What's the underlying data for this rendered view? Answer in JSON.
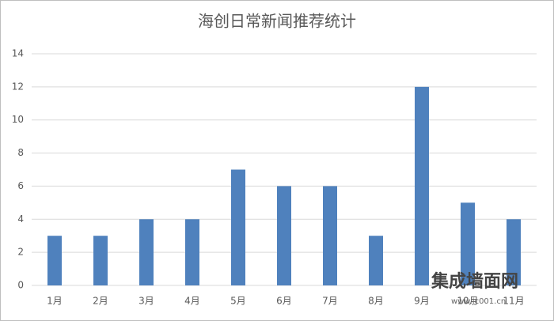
{
  "chart_data": {
    "type": "bar",
    "title": "海创日常新闻推荐统计",
    "categories": [
      "1月",
      "2月",
      "3月",
      "4月",
      "5月",
      "6月",
      "7月",
      "8月",
      "9月",
      "10月",
      "11月"
    ],
    "values": [
      3,
      3,
      4,
      4,
      7,
      6,
      6,
      3,
      12,
      5,
      4
    ],
    "color": "#4f81bd",
    "ylim": [
      0,
      14
    ],
    "yticks": [
      0,
      2,
      4,
      6,
      8,
      10,
      12,
      14
    ],
    "grid": true
  },
  "watermark": {
    "name": "集成墙面网",
    "url": "www.jc001.cn"
  }
}
